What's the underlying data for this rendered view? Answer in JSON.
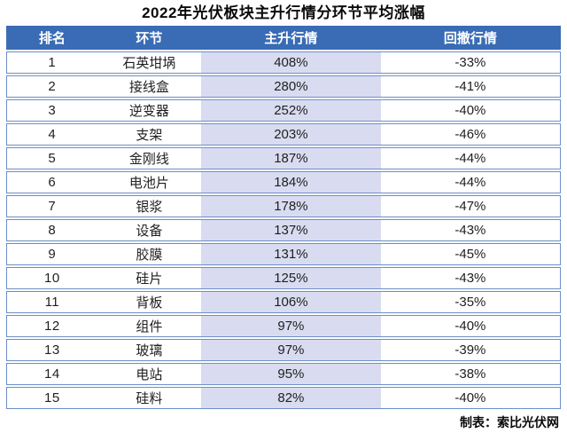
{
  "title": "2022年光伏板块主升行情分环节平均涨幅",
  "footer": {
    "credit": "制表：索比光伏网"
  },
  "colors": {
    "header_bg": "#3a6cb5",
    "header_text": "#ffffff",
    "rise_column_bg": "#d9dcf0",
    "row_border": "#6b8fc9",
    "title_text": "#0a0a0a"
  },
  "table": {
    "columns": [
      {
        "key": "rank",
        "label": "排名"
      },
      {
        "key": "segment",
        "label": "环节"
      },
      {
        "key": "rise",
        "label": "主升行情"
      },
      {
        "key": "pullback",
        "label": "回撤行情"
      }
    ],
    "rows": [
      {
        "rank": "1",
        "segment": "石英坩埚",
        "rise": "408%",
        "pullback": "-33%"
      },
      {
        "rank": "2",
        "segment": "接线盒",
        "rise": "280%",
        "pullback": "-41%"
      },
      {
        "rank": "3",
        "segment": "逆变器",
        "rise": "252%",
        "pullback": "-40%"
      },
      {
        "rank": "4",
        "segment": "支架",
        "rise": "203%",
        "pullback": "-46%"
      },
      {
        "rank": "5",
        "segment": "金刚线",
        "rise": "187%",
        "pullback": "-44%"
      },
      {
        "rank": "6",
        "segment": "电池片",
        "rise": "184%",
        "pullback": "-44%"
      },
      {
        "rank": "7",
        "segment": "银浆",
        "rise": "178%",
        "pullback": "-47%"
      },
      {
        "rank": "8",
        "segment": "设备",
        "rise": "137%",
        "pullback": "-43%"
      },
      {
        "rank": "9",
        "segment": "胶膜",
        "rise": "131%",
        "pullback": "-45%"
      },
      {
        "rank": "10",
        "segment": "硅片",
        "rise": "125%",
        "pullback": "-43%"
      },
      {
        "rank": "11",
        "segment": "背板",
        "rise": "106%",
        "pullback": "-35%"
      },
      {
        "rank": "12",
        "segment": "组件",
        "rise": "97%",
        "pullback": "-40%"
      },
      {
        "rank": "13",
        "segment": "玻璃",
        "rise": "97%",
        "pullback": "-39%"
      },
      {
        "rank": "14",
        "segment": "电站",
        "rise": "95%",
        "pullback": "-38%"
      },
      {
        "rank": "15",
        "segment": "硅料",
        "rise": "82%",
        "pullback": "-40%"
      }
    ]
  },
  "chart_data": {
    "type": "table",
    "title": "2022年光伏板块主升行情分环节平均涨幅",
    "categories": [
      "石英坩埚",
      "接线盒",
      "逆变器",
      "支架",
      "金刚线",
      "电池片",
      "银浆",
      "设备",
      "胶膜",
      "硅片",
      "背板",
      "组件",
      "玻璃",
      "电站",
      "硅料"
    ],
    "series": [
      {
        "name": "主升行情",
        "values": [
          408,
          280,
          252,
          203,
          187,
          184,
          178,
          137,
          131,
          125,
          106,
          97,
          97,
          95,
          82
        ],
        "unit": "%"
      },
      {
        "name": "回撤行情",
        "values": [
          -33,
          -41,
          -40,
          -46,
          -44,
          -44,
          -47,
          -43,
          -45,
          -43,
          -35,
          -40,
          -39,
          -38,
          -40
        ],
        "unit": "%"
      }
    ],
    "ranks": [
      1,
      2,
      3,
      4,
      5,
      6,
      7,
      8,
      9,
      10,
      11,
      12,
      13,
      14,
      15
    ],
    "credit": "制表：索比光伏网"
  }
}
